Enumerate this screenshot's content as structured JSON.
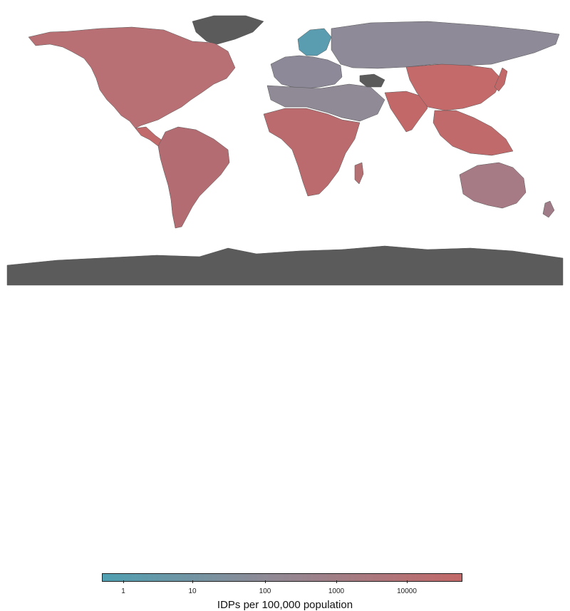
{
  "map": {
    "colors": {
      "low": "#4fa0b2",
      "mid": "#8e8a96",
      "high": "#c36868",
      "no_data": "#5b5b5b",
      "ocean": "#ffffff",
      "border": "#444444"
    },
    "shaded_regions": [
      {
        "name": "North America",
        "level": "high"
      },
      {
        "name": "Greenland",
        "level": "no_data"
      },
      {
        "name": "South America",
        "level": "high"
      },
      {
        "name": "Europe",
        "level": "mid"
      },
      {
        "name": "Scandinavia",
        "level": "low"
      },
      {
        "name": "Russia",
        "level": "mid"
      },
      {
        "name": "Africa",
        "level": "high"
      },
      {
        "name": "Middle East",
        "level": "mid"
      },
      {
        "name": "South Asia",
        "level": "high"
      },
      {
        "name": "East Asia",
        "level": "high"
      },
      {
        "name": "Southeast Asia",
        "level": "high"
      },
      {
        "name": "Australia",
        "level": "mid-high"
      },
      {
        "name": "Antarctica",
        "level": "no_data"
      }
    ]
  },
  "legend": {
    "title": "IDPs per 100,000 population",
    "ticks": [
      "1",
      "10",
      "100",
      "1000",
      "10000"
    ],
    "gradient": [
      "#4fa0b2",
      "#8e8a96",
      "#c36868"
    ]
  }
}
